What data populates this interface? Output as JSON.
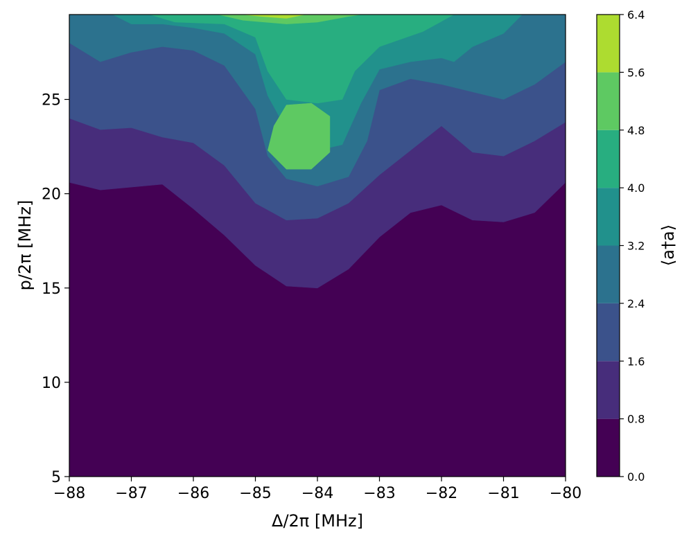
{
  "chart_data": {
    "type": "heatmap",
    "subtype": "filled-contour",
    "xlabel": "Δ/2π [MHz]",
    "ylabel": "p/2π [MHz]",
    "colorbar_label": "⟨a†a⟩",
    "xlim": [
      -88,
      -80
    ],
    "ylim": [
      5,
      29.5
    ],
    "xticks": [
      -88,
      -87,
      -86,
      -85,
      -84,
      -83,
      -82,
      -81,
      -80
    ],
    "xtick_labels": [
      "−88",
      "−87",
      "−86",
      "−85",
      "−84",
      "−83",
      "−82",
      "−81",
      "−80"
    ],
    "yticks": [
      5,
      10,
      15,
      20,
      25
    ],
    "ytick_labels": [
      "5",
      "10",
      "15",
      "20",
      "25"
    ],
    "colorbar": {
      "levels": [
        0.0,
        0.8,
        1.6,
        2.4,
        3.2,
        4.0,
        4.8,
        5.6,
        6.4
      ],
      "tick_labels": [
        "0.0",
        "0.8",
        "1.6",
        "2.4",
        "3.2",
        "4.0",
        "4.8",
        "5.6",
        "6.4"
      ],
      "colors": [
        "#440154",
        "#472d7b",
        "#3b528b",
        "#2c728e",
        "#21918c",
        "#28ae80",
        "#5ec962",
        "#addc30",
        "#fde725"
      ],
      "colormap": "viridis"
    },
    "contour_boundaries": [
      {
        "level": 0.8,
        "points": [
          [
            -88,
            20.6
          ],
          [
            -87.5,
            20.2
          ],
          [
            -86.5,
            20.5
          ],
          [
            -86,
            19.2
          ],
          [
            -85.5,
            17.8
          ],
          [
            -85,
            16.2
          ],
          [
            -84.5,
            15.1
          ],
          [
            -84,
            15.0
          ],
          [
            -83.5,
            16.0
          ],
          [
            -83,
            17.7
          ],
          [
            -82.5,
            19.0
          ],
          [
            -82,
            19.4
          ],
          [
            -81.5,
            18.6
          ],
          [
            -81,
            18.5
          ],
          [
            -80.5,
            19.0
          ],
          [
            -80,
            20.6
          ]
        ]
      },
      {
        "level": 1.6,
        "points": [
          [
            -88,
            24.0
          ],
          [
            -87.5,
            23.4
          ],
          [
            -87,
            23.5
          ],
          [
            -86.5,
            23.0
          ],
          [
            -86,
            22.7
          ],
          [
            -85.5,
            21.5
          ],
          [
            -85,
            19.5
          ],
          [
            -84.5,
            18.6
          ],
          [
            -84,
            18.7
          ],
          [
            -83.5,
            19.5
          ],
          [
            -83,
            21.0
          ],
          [
            -82.5,
            22.3
          ],
          [
            -82,
            23.6
          ],
          [
            -81.5,
            22.2
          ],
          [
            -81,
            22.0
          ],
          [
            -80.5,
            22.8
          ],
          [
            -80,
            23.8
          ]
        ]
      },
      {
        "level": 2.4,
        "points": [
          [
            -88,
            28.0
          ],
          [
            -87.5,
            27.0
          ],
          [
            -87,
            27.5
          ],
          [
            -86.5,
            27.8
          ],
          [
            -86,
            27.6
          ],
          [
            -85.5,
            26.8
          ],
          [
            -85,
            24.5
          ],
          [
            -84.8,
            22.0
          ],
          [
            -84.5,
            20.8
          ],
          [
            -84,
            20.4
          ],
          [
            -83.5,
            20.9
          ],
          [
            -83.2,
            22.8
          ],
          [
            -83,
            25.5
          ],
          [
            -82.5,
            26.1
          ],
          [
            -82,
            25.8
          ],
          [
            -81.5,
            25.4
          ],
          [
            -81,
            25.0
          ],
          [
            -80.5,
            25.8
          ],
          [
            -80,
            27.0
          ]
        ]
      },
      {
        "level": 3.2,
        "points": [
          [
            -87.3,
            29.5
          ],
          [
            -87,
            29.0
          ],
          [
            -86.5,
            29.0
          ],
          [
            -86,
            28.8
          ],
          [
            -85.5,
            28.5
          ],
          [
            -85,
            27.4
          ],
          [
            -84.8,
            25.2
          ],
          [
            -84.4,
            22.8
          ],
          [
            -84,
            22.3
          ],
          [
            -83.6,
            22.6
          ],
          [
            -83.3,
            24.8
          ],
          [
            -83,
            26.6
          ],
          [
            -82.5,
            27.0
          ],
          [
            -82,
            27.2
          ],
          [
            -81.8,
            27.0
          ],
          [
            -81.5,
            27.8
          ],
          [
            -81,
            28.5
          ],
          [
            -80.7,
            29.5
          ]
        ]
      },
      {
        "level": 4.0,
        "points": [
          [
            -86.7,
            29.5
          ],
          [
            -86.3,
            29.1
          ],
          [
            -85.5,
            29.0
          ],
          [
            -85,
            28.3
          ],
          [
            -84.8,
            26.5
          ],
          [
            -84.5,
            25.0
          ],
          [
            -84,
            24.8
          ],
          [
            -83.6,
            25.0
          ],
          [
            -83.4,
            26.5
          ],
          [
            -83,
            27.8
          ],
          [
            -82.3,
            28.6
          ],
          [
            -81.8,
            29.5
          ]
        ]
      },
      {
        "level": 4.8,
        "points": [
          [
            -84.7,
            23.6
          ],
          [
            -84.5,
            24.7
          ],
          [
            -84.1,
            24.8
          ],
          [
            -83.8,
            24.1
          ],
          [
            -83.8,
            22.2
          ],
          [
            -84.1,
            21.3
          ],
          [
            -84.5,
            21.3
          ],
          [
            -84.8,
            22.3
          ]
        ]
      },
      {
        "level": 4.8,
        "points": [
          [
            -85.6,
            29.5
          ],
          [
            -85.2,
            29.2
          ],
          [
            -84.5,
            29.0
          ],
          [
            -84,
            29.1
          ],
          [
            -83.5,
            29.4
          ],
          [
            -83.3,
            29.5
          ]
        ]
      },
      {
        "level": 5.6,
        "points": [
          [
            -85.2,
            29.5
          ],
          [
            -84.9,
            29.4
          ],
          [
            -84.5,
            29.3
          ],
          [
            -84.2,
            29.5
          ]
        ]
      }
    ]
  }
}
